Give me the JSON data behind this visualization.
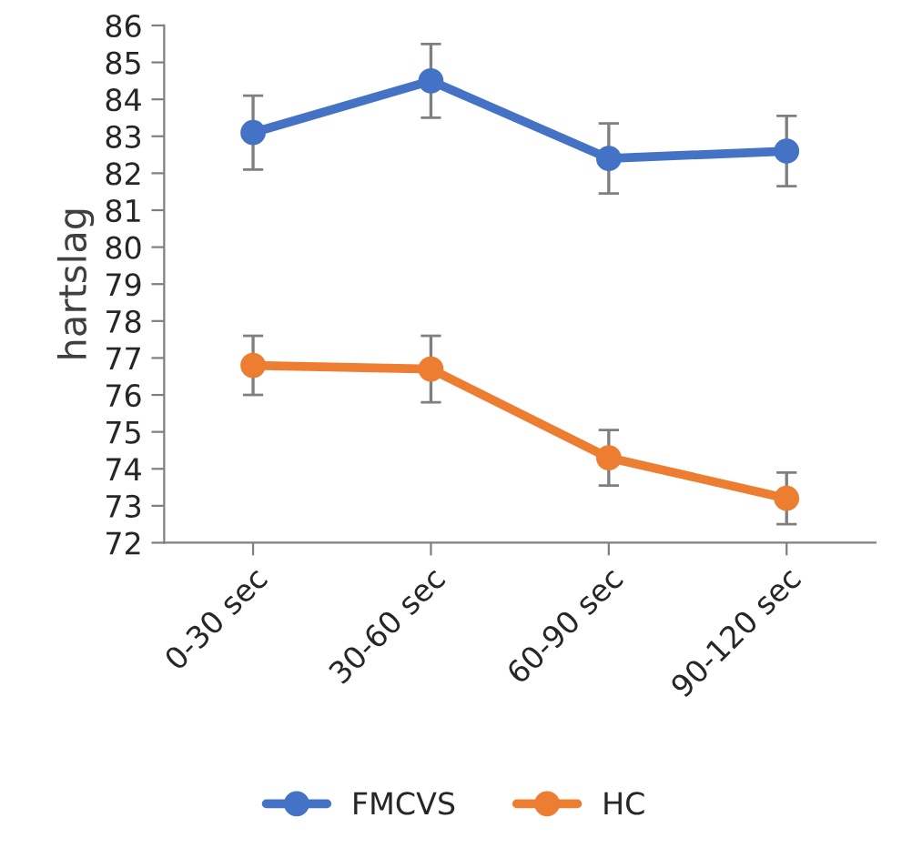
{
  "chart_data": {
    "type": "line",
    "ylabel": "hartslag",
    "categories": [
      "0-30 sec",
      "30-60 sec",
      "60-90 sec",
      "90-120 sec"
    ],
    "series": [
      {
        "name": "FMCVS",
        "color": "#4472c4",
        "values": [
          83.1,
          84.5,
          82.4,
          82.6
        ],
        "errors": [
          1.0,
          1.0,
          0.95,
          0.95
        ]
      },
      {
        "name": "HC",
        "color": "#ed7d31",
        "values": [
          76.8,
          76.7,
          74.3,
          73.2
        ],
        "errors": [
          0.8,
          0.9,
          0.75,
          0.7
        ]
      }
    ],
    "ylim": [
      72,
      86
    ],
    "yticks": [
      72,
      73,
      74,
      75,
      76,
      77,
      78,
      79,
      80,
      81,
      82,
      83,
      84,
      85,
      86
    ],
    "grid": false,
    "legend": "bottom",
    "marker": "circle",
    "line_style": "solid"
  }
}
